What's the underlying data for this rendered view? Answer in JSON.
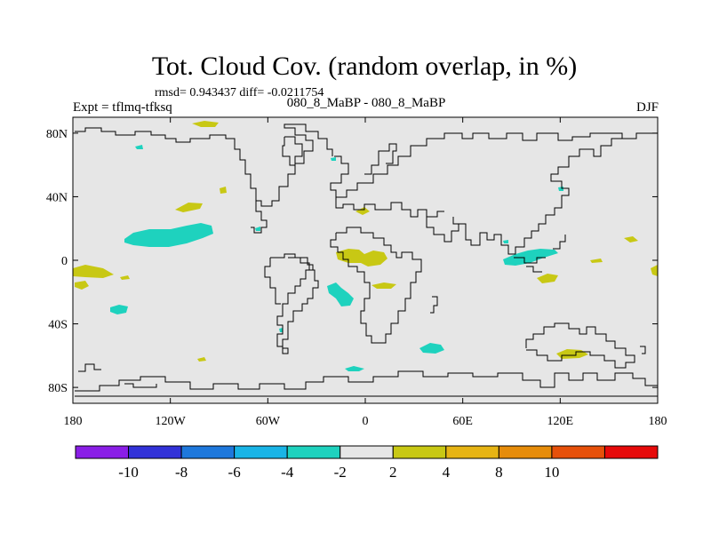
{
  "title": "Tot. Cloud Cov. (random overlap, in %)",
  "stats": "rmsd= 0.943437  diff= -0.0211754",
  "left_label": "Expt = tflmq-tfksq",
  "center_label": "080_8_MaBP - 080_8_MaBP",
  "right_label": "DJF",
  "lat_ticks": [
    {
      "label": "80N",
      "lat": 80
    },
    {
      "label": "40N",
      "lat": 40
    },
    {
      "label": "0",
      "lat": 0
    },
    {
      "label": "40S",
      "lat": -40
    },
    {
      "label": "80S",
      "lat": -80
    }
  ],
  "lon_ticks": [
    {
      "label": "180",
      "lon": -180
    },
    {
      "label": "120W",
      "lon": -120
    },
    {
      "label": "60W",
      "lon": -60
    },
    {
      "label": "0",
      "lon": 0
    },
    {
      "label": "60E",
      "lon": 60
    },
    {
      "label": "120E",
      "lon": 120
    },
    {
      "label": "180",
      "lon": 180
    }
  ],
  "colorbar": {
    "colors": [
      "#8a1ee6",
      "#3232d8",
      "#1e78dc",
      "#19b4e6",
      "#1ed2be",
      "#e6e6e6",
      "#c8c814",
      "#e6b414",
      "#e68c0a",
      "#e6500a",
      "#e60a0a"
    ],
    "labels": [
      "-10",
      "-8",
      "-6",
      "-4",
      "-2",
      "2",
      "4",
      "8",
      "10"
    ]
  },
  "colors": {
    "background_field": "#e6e6e6",
    "negative_anomaly": "#1ed2be",
    "positive_anomaly": "#c8c814",
    "coastline": "#000000"
  }
}
